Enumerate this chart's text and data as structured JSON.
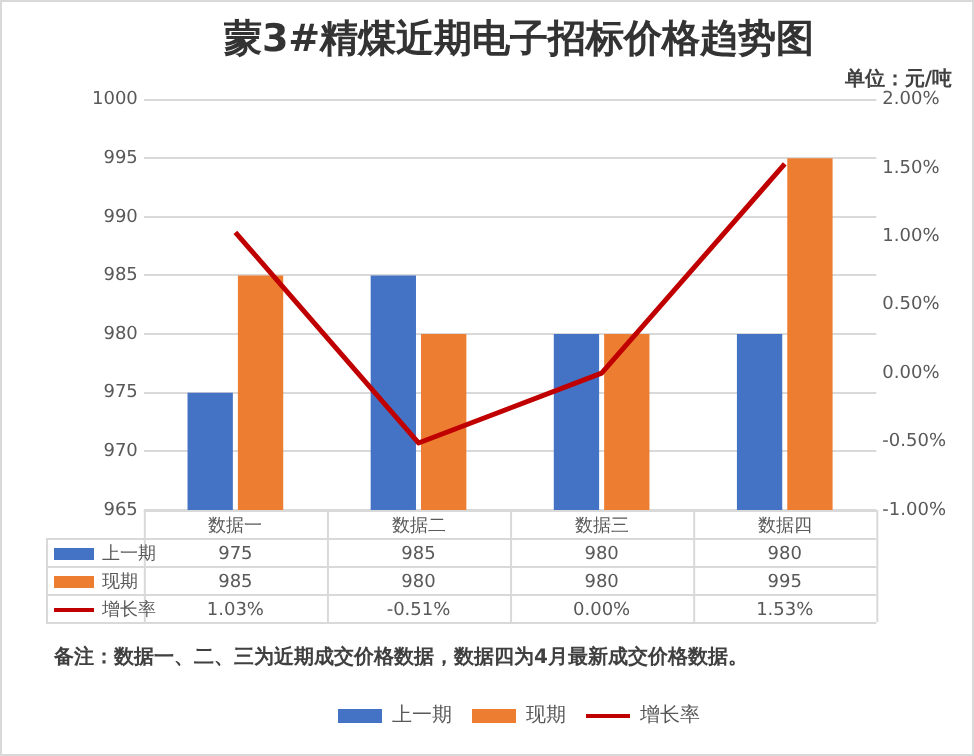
{
  "chart_data": {
    "type": "bar",
    "title": "蒙3#精煤近期电子招标价格趋势图",
    "subtitle": "单位：元/吨",
    "categories": [
      "数据一",
      "数据二",
      "数据三",
      "数据四"
    ],
    "series": [
      {
        "name": "上一期",
        "color": "#4472c4",
        "values": [
          975,
          985,
          980,
          980
        ]
      },
      {
        "name": "现期",
        "color": "#ed7d31",
        "values": [
          985,
          980,
          980,
          995
        ]
      },
      {
        "name": "增长率",
        "type": "line",
        "axis": "y2",
        "color": "#c00000",
        "values": [
          1.03,
          -0.51,
          0,
          1.53
        ],
        "value_labels": [
          "1.03%",
          "-0.51%",
          "0.00%",
          "1.53%"
        ]
      }
    ],
    "ylim": [
      965,
      1000
    ],
    "yticks": [
      965,
      970,
      975,
      980,
      985,
      990,
      995,
      1000
    ],
    "y2lim": [
      -1,
      2
    ],
    "y2ticks": [
      {
        "value": -1,
        "label": "-1.00%"
      },
      {
        "value": -0.5,
        "label": "-0.50%"
      },
      {
        "value": 0,
        "label": "0.00%"
      },
      {
        "value": 0.5,
        "label": "0.50%"
      },
      {
        "value": 1,
        "label": "1.00%"
      },
      {
        "value": 1.5,
        "label": "1.50%"
      },
      {
        "value": 2,
        "label": "2.00%"
      }
    ],
    "grid": "y",
    "legend": "bottom",
    "data_labels": true,
    "marker": "none",
    "annotations": [
      "备注：数据一、二、三为近期成交价格数据，数据四为4月最新成交价格数据。"
    ]
  }
}
